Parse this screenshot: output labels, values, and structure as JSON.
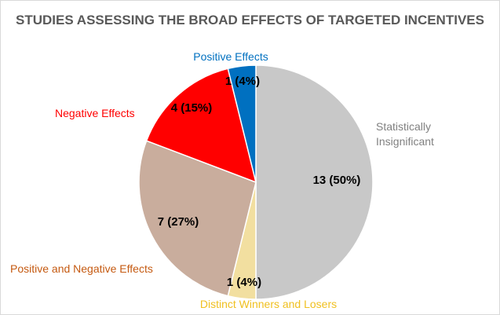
{
  "chart_data": {
    "type": "pie",
    "title": "STUDIES ASSESSING THE BROAD EFFECTS OF TARGETED INCENTIVES",
    "legend": "none (category labels placed beside slices)",
    "slices": [
      {
        "name": "Statistically Insignificant",
        "value": 13,
        "percent": 50,
        "label": "13 (50%)",
        "color": "#c8c8c8",
        "label_color": "#808080"
      },
      {
        "name": "Distinct Winners and Losers",
        "value": 1,
        "percent": 4,
        "label": "1 (4%)",
        "color": "#f2dfa0",
        "label_color": "#f0c020"
      },
      {
        "name": "Positive and Negative Effects",
        "value": 7,
        "percent": 27,
        "label": "7 (27%)",
        "color": "#c9ad9d",
        "label_color": "#c55a11"
      },
      {
        "name": "Negative Effects",
        "value": 4,
        "percent": 15,
        "label": "4 (15%)",
        "color": "#ff0000",
        "label_color": "#ff0000"
      },
      {
        "name": "Positive Effects",
        "value": 1,
        "percent": 4,
        "label": "1 (4%)",
        "color": "#0070c0",
        "label_color": "#0070c0"
      }
    ]
  }
}
